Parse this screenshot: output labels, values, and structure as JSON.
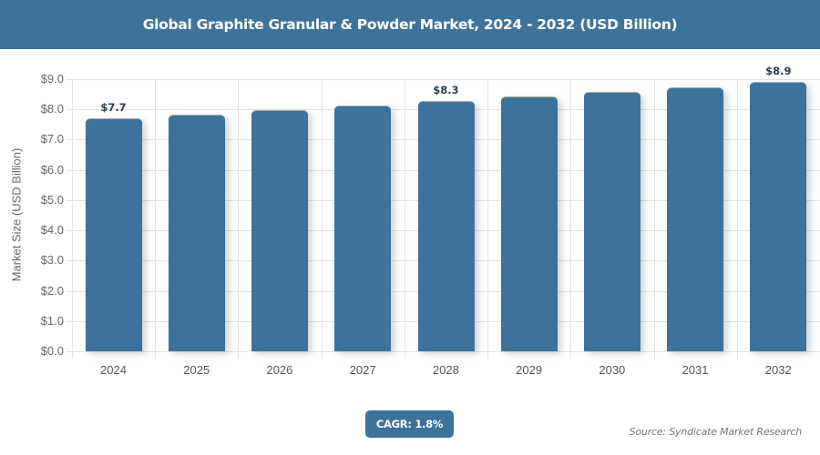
{
  "header": {
    "title": "Global Graphite Granular & Powder Market, 2024 - 2032 (USD Billion)"
  },
  "chart_data": {
    "type": "bar",
    "title": "Global Graphite Granular & Powder Market, 2024 - 2032 (USD Billion)",
    "xlabel": "",
    "ylabel": "Market Size (USD Billion)",
    "categories": [
      "2024",
      "2025",
      "2026",
      "2027",
      "2028",
      "2029",
      "2030",
      "2031",
      "2032"
    ],
    "values": [
      7.7,
      7.84,
      7.98,
      8.13,
      8.27,
      8.42,
      8.57,
      8.72,
      8.9
    ],
    "data_labels": {
      "0": "$7.7",
      "4": "$8.3",
      "8": "$8.9"
    },
    "ylim": [
      0,
      9
    ],
    "yticks": [
      "$0.0",
      "$1.0",
      "$2.0",
      "$3.0",
      "$4.0",
      "$5.0",
      "$6.0",
      "$7.0",
      "$8.0",
      "$9.0"
    ],
    "grid": true,
    "legend": "none",
    "bar_color": "#3d739a"
  },
  "footer": {
    "cagr": "CAGR: 1.8%",
    "source": "Source: Syndicate Market Research"
  }
}
